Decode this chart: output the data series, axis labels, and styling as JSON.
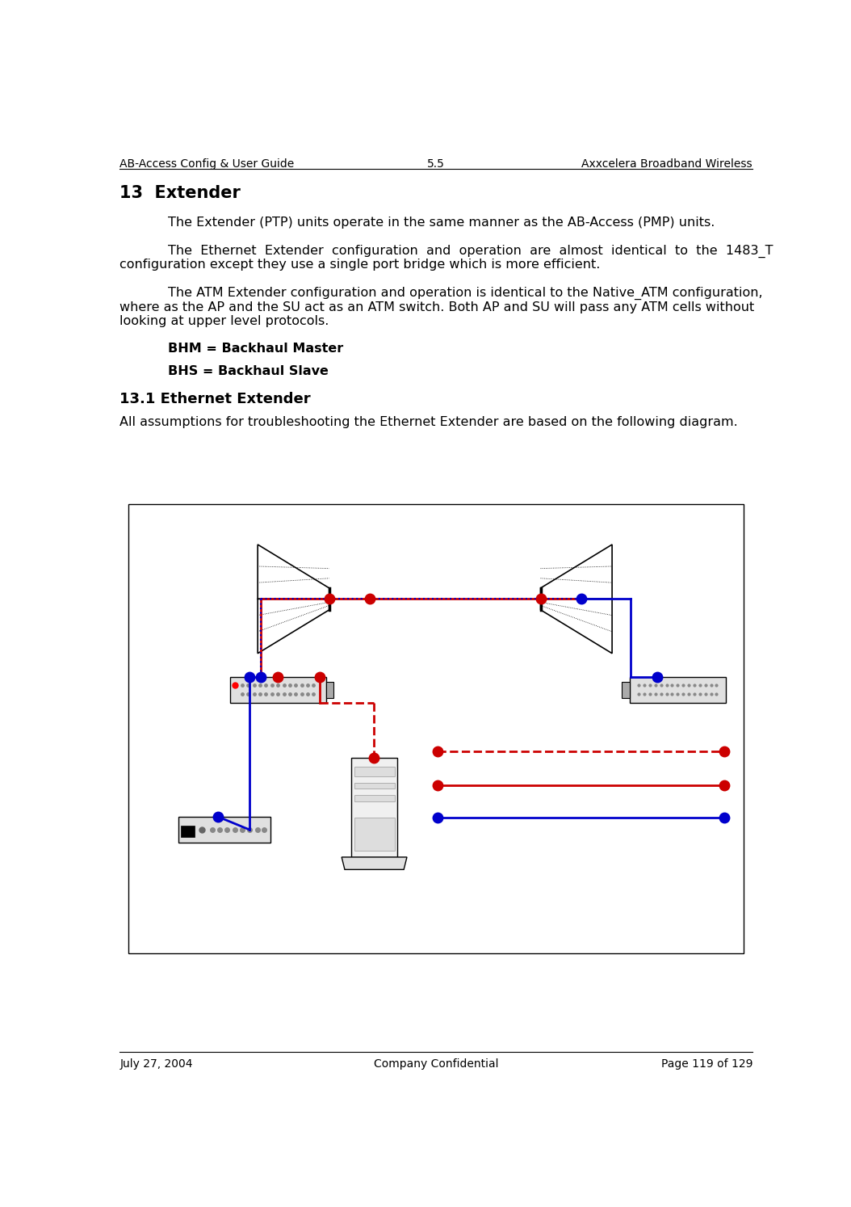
{
  "header_left": "AB-Access Config & User Guide",
  "header_center": "5.5",
  "header_right": "Axxcelera Broadband Wireless",
  "footer_left": "July 27, 2004",
  "footer_center": "Company Confidential",
  "footer_right": "Page 119 of 129",
  "section_title": "13  Extender",
  "para1": "The Extender (PTP) units operate in the same manner as the AB-Access (PMP) units.",
  "para2_line1": "The  Ethernet  Extender  configuration  and  operation  are  almost  identical  to  the  1483_T",
  "para2_line2": "configuration except they use a single port bridge which is more efficient.",
  "para3_line1": "The ATM Extender configuration and operation is identical to the Native_ATM configuration,",
  "para3_line2": "where as the AP and the SU act as an ATM switch. Both AP and SU will pass any ATM cells without",
  "para3_line3": "looking at upper level protocols.",
  "bhm": "BHM = Backhaul Master",
  "bhs": "BHS = Backhaul Slave",
  "subsection": "13.1 Ethernet Extender",
  "subpara": "All assumptions for troubleshooting the Ethernet Extender are based on the following diagram.",
  "bg_color": "#ffffff",
  "text_color": "#000000",
  "header_font_size": 10,
  "body_font_size": 11.5,
  "title_font_size": 15,
  "subtitle_font_size": 13,
  "bold_font_size": 11.5
}
